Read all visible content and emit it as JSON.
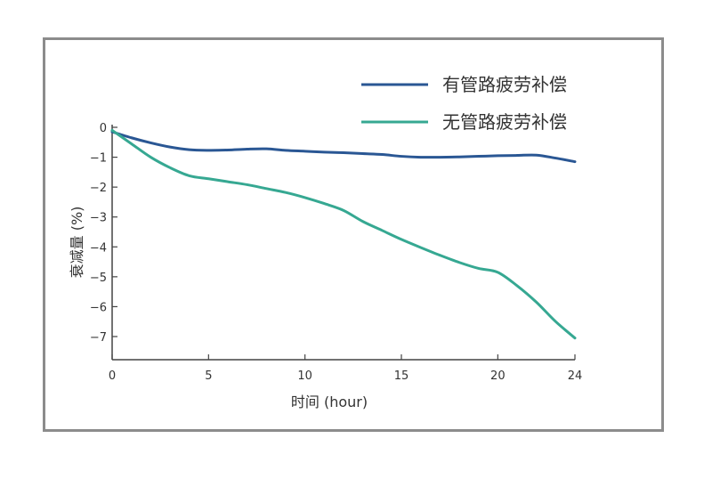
{
  "chart_data": {
    "type": "line",
    "xlabel": "时间 (hour)",
    "ylabel": "衰减量 (%)",
    "xlim": [
      0,
      25
    ],
    "ylim": [
      -7.8,
      0
    ],
    "x_ticks": [
      0,
      5,
      10,
      15,
      20,
      24
    ],
    "y_ticks": [
      0,
      -1,
      -2,
      -3,
      -4,
      -5,
      -6,
      -7
    ],
    "y_tick_labels": [
      "0",
      "−1",
      "−2",
      "−3",
      "−4",
      "−5",
      "−6",
      "−7"
    ],
    "grid": false,
    "legend_position": "top-right",
    "series": [
      {
        "name": "有管路疲劳补偿",
        "color": "#2a5794",
        "x": [
          0,
          1,
          2,
          3,
          4,
          5,
          6,
          7,
          8,
          9,
          10,
          11,
          12,
          13,
          14,
          15,
          16,
          17,
          18,
          19,
          20,
          21,
          22,
          23,
          24
        ],
        "y": [
          -0.15,
          -0.35,
          -0.52,
          -0.66,
          -0.75,
          -0.77,
          -0.76,
          -0.73,
          -0.72,
          -0.77,
          -0.8,
          -0.83,
          -0.85,
          -0.88,
          -0.91,
          -0.97,
          -1.0,
          -1.0,
          -0.99,
          -0.97,
          -0.95,
          -0.94,
          -0.93,
          -1.03,
          -1.15
        ]
      },
      {
        "name": "无管路疲劳补偿",
        "color": "#36a892",
        "x": [
          0,
          1,
          2,
          3,
          4,
          5,
          6,
          7,
          8,
          9,
          10,
          11,
          12,
          13,
          14,
          15,
          16,
          17,
          18,
          19,
          20,
          21,
          22,
          23,
          24
        ],
        "y": [
          -0.1,
          -0.55,
          -1.0,
          -1.35,
          -1.62,
          -1.72,
          -1.82,
          -1.92,
          -2.05,
          -2.18,
          -2.35,
          -2.55,
          -2.78,
          -3.15,
          -3.45,
          -3.75,
          -4.02,
          -4.28,
          -4.52,
          -4.72,
          -4.85,
          -5.3,
          -5.85,
          -6.5,
          -7.05
        ]
      }
    ]
  }
}
